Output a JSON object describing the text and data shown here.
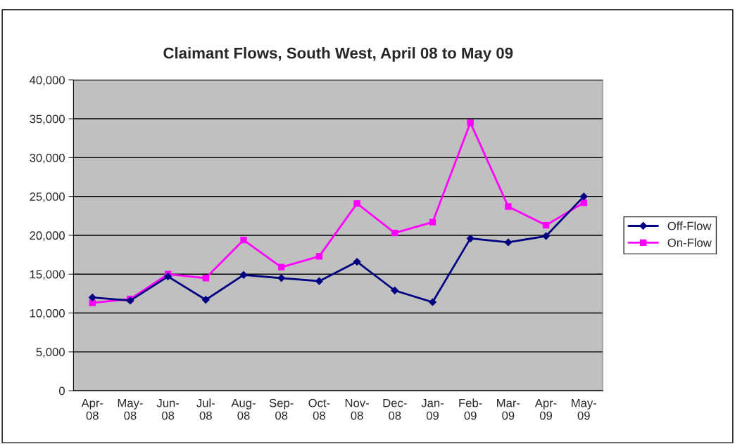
{
  "chart_data": {
    "type": "line",
    "title": "Claimant Flows, South West, April 08 to May 09",
    "categories": [
      "Apr-08",
      "May-08",
      "Jun-08",
      "Jul-08",
      "Aug-08",
      "Sep-08",
      "Oct-08",
      "Nov-08",
      "Dec-08",
      "Jan-09",
      "Feb-09",
      "Mar-09",
      "Apr-09",
      "May-09"
    ],
    "series": [
      {
        "name": "Off-Flow",
        "color": "#000080",
        "marker": "diamond",
        "values": [
          12000,
          11600,
          14700,
          11700,
          14900,
          14500,
          14100,
          16600,
          12900,
          11400,
          19600,
          19100,
          19900,
          25000
        ]
      },
      {
        "name": "On-Flow",
        "color": "#ff00ff",
        "marker": "square",
        "values": [
          11300,
          11800,
          15000,
          14500,
          19400,
          15900,
          17300,
          24100,
          20300,
          21700,
          34500,
          23700,
          21300,
          24200
        ]
      }
    ],
    "ylim": [
      0,
      40000
    ],
    "yticks": [
      {
        "value": 0,
        "label": "0"
      },
      {
        "value": 5000,
        "label": "5,000"
      },
      {
        "value": 10000,
        "label": "10,000"
      },
      {
        "value": 15000,
        "label": "15,000"
      },
      {
        "value": 20000,
        "label": "20,000"
      },
      {
        "value": 25000,
        "label": "25,000"
      },
      {
        "value": 30000,
        "label": "30,000"
      },
      {
        "value": 35000,
        "label": "35,000"
      },
      {
        "value": 40000,
        "label": "40,000"
      }
    ],
    "grid": "y",
    "legend": "right"
  }
}
